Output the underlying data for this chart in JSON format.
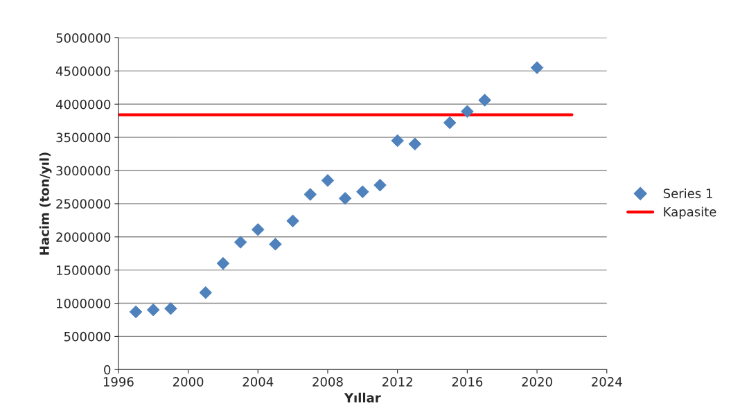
{
  "chart_data": {
    "type": "scatter",
    "xlabel": "Yıllar",
    "ylabel": "Hacim (ton/yıl)",
    "x": [
      1997,
      1998,
      1999,
      2001,
      2002,
      2003,
      2004,
      2005,
      2006,
      2007,
      2008,
      2009,
      2010,
      2011,
      2012,
      2013,
      2015,
      2016,
      2017,
      2020
    ],
    "series": [
      {
        "name": "Series 1",
        "color": "#4f81bd",
        "marker": "diamond",
        "values": [
          870000,
          900000,
          920000,
          1160000,
          1600000,
          1920000,
          2110000,
          1890000,
          2240000,
          2640000,
          2850000,
          2580000,
          2680000,
          2780000,
          3450000,
          3400000,
          3720000,
          3890000,
          4060000,
          4550000
        ]
      },
      {
        "name": "Kapasite",
        "type": "line",
        "color": "#ff0000",
        "x": [
          1996,
          2022
        ],
        "values": [
          3840000,
          3840000
        ]
      }
    ],
    "xlim": [
      1996,
      2024
    ],
    "xticks": [
      1996,
      2000,
      2004,
      2008,
      2012,
      2016,
      2020,
      2024
    ],
    "ylim": [
      0,
      5000000
    ],
    "yticks": [
      0,
      500000,
      1000000,
      1500000,
      2000000,
      2500000,
      3000000,
      3500000,
      4000000,
      4500000,
      5000000
    ],
    "grid": "y",
    "legend": "right"
  }
}
